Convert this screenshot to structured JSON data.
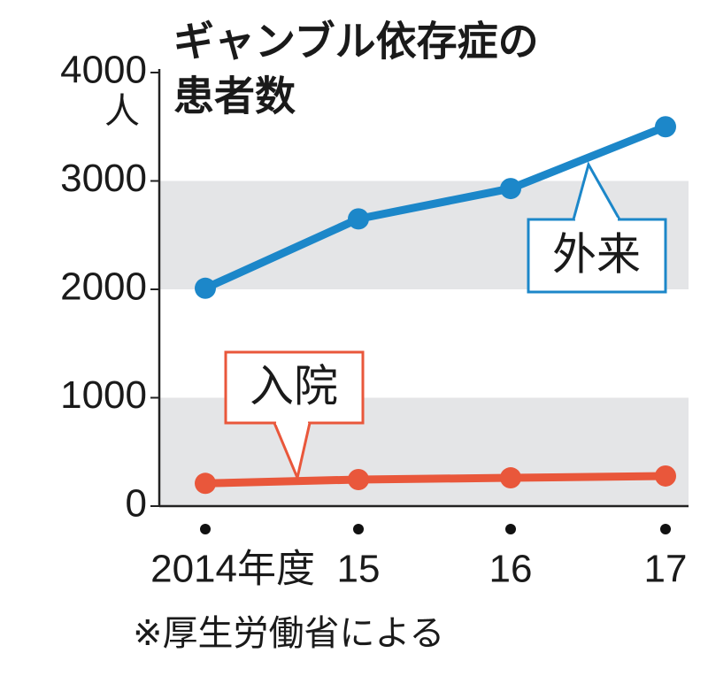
{
  "chart_data": {
    "type": "line",
    "title": [
      "ギャンブル依存症の",
      "患者数"
    ],
    "y_unit": "人",
    "source": "※厚生労働省による",
    "categories": [
      "2014年度",
      "15",
      "16",
      "17"
    ],
    "series": [
      {
        "name": "外来",
        "color": "#1c87c9",
        "values": [
          2010,
          2650,
          2930,
          3500
        ]
      },
      {
        "name": "入院",
        "color": "#e9573b",
        "values": [
          210,
          245,
          261,
          278
        ]
      }
    ],
    "ylim": [
      0,
      4000
    ],
    "yticks": [
      0,
      1000,
      2000,
      3000,
      4000
    ],
    "banded": true
  }
}
